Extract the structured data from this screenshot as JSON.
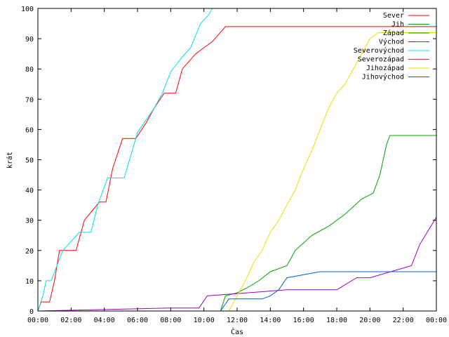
{
  "chart_data": {
    "type": "line",
    "xlabel": "Čas",
    "ylabel": "krát",
    "xlim": [
      0,
      24
    ],
    "ylim": [
      0,
      100
    ],
    "x_ticks": [
      {
        "value": 0,
        "label": "00:00"
      },
      {
        "value": 2,
        "label": "02:00"
      },
      {
        "value": 4,
        "label": "04:00"
      },
      {
        "value": 6,
        "label": "06:00"
      },
      {
        "value": 8,
        "label": "08:00"
      },
      {
        "value": 10,
        "label": "10:00"
      },
      {
        "value": 12,
        "label": "12:00"
      },
      {
        "value": 14,
        "label": "14:00"
      },
      {
        "value": 16,
        "label": "16:00"
      },
      {
        "value": 18,
        "label": "18:00"
      },
      {
        "value": 20,
        "label": "20:00"
      },
      {
        "value": 22,
        "label": "22:00"
      },
      {
        "value": 24,
        "label": "00:00"
      }
    ],
    "y_ticks": [
      0,
      10,
      20,
      30,
      40,
      50,
      60,
      70,
      80,
      90,
      100
    ],
    "grid": false,
    "legend_position": "top-right",
    "series": [
      {
        "name": "Sever",
        "color": "#ff0000",
        "x": [
          0.0,
          0.2,
          0.7,
          1.0,
          1.3,
          2.3,
          2.8,
          3.7,
          4.1,
          4.5,
          5.1,
          5.9,
          6.5,
          7.0,
          7.6,
          8.3,
          8.7,
          9.5,
          10.5,
          11.3,
          14.0,
          16.0,
          18.0,
          20.0,
          21.0,
          22.0,
          24.0
        ],
        "y": [
          0,
          3,
          3,
          10,
          20,
          20,
          30,
          36,
          36,
          47,
          57,
          57,
          62,
          67,
          72,
          72,
          80,
          85,
          89,
          94,
          94,
          94,
          94,
          94,
          94,
          94,
          94
        ]
      },
      {
        "name": "Jih",
        "color": "#00a000",
        "x": [
          0.0,
          11.0,
          11.3,
          12.0,
          12.7,
          13.3,
          14.0,
          15.0,
          15.5,
          16.5,
          17.5,
          18.5,
          19.5,
          20.2,
          20.6,
          21.0,
          21.2,
          22.0,
          24.0
        ],
        "y": [
          0,
          0,
          5,
          6,
          8,
          10,
          13,
          15,
          20,
          25,
          28,
          32,
          37,
          39,
          45,
          55,
          58,
          58,
          58
        ]
      },
      {
        "name": "Západ",
        "color": "#00a000",
        "x": [],
        "y": []
      },
      {
        "name": "Východ",
        "color": "#a000c0",
        "x": [
          0.0,
          7.9,
          9.7,
          10.2,
          15.0,
          18.0,
          19.2,
          20.0,
          22.5,
          23.0,
          24.0
        ],
        "y": [
          0,
          1,
          1,
          5,
          7,
          7,
          11,
          11,
          15,
          22,
          31
        ]
      },
      {
        "name": "Severovýchod",
        "color": "#00e0e0",
        "x": [
          0.0,
          0.3,
          0.5,
          0.8,
          1.5,
          2.5,
          3.2,
          3.6,
          4.2,
          5.2,
          6.0,
          7.0,
          7.5,
          8.0,
          8.7,
          9.2,
          9.8,
          10.3,
          10.5
        ],
        "y": [
          0,
          5,
          10,
          10,
          20,
          26,
          26,
          35,
          44,
          44,
          59,
          67,
          72,
          79,
          84,
          87,
          95,
          98,
          100
        ]
      },
      {
        "name": "Severozápad",
        "color": "#b04040",
        "x": [],
        "y": []
      },
      {
        "name": "Jihozápad",
        "color": "#e8e000",
        "x": [
          0.0,
          11.5,
          12.0,
          12.5,
          13.0,
          13.5,
          14.0,
          14.5,
          15.0,
          15.5,
          16.0,
          16.5,
          17.0,
          17.5,
          18.0,
          18.5,
          19.0,
          19.5,
          20.0,
          20.5,
          21.0,
          22.0,
          24.0
        ],
        "y": [
          0,
          0,
          5,
          10,
          16,
          20,
          26,
          30,
          35,
          40,
          47,
          53,
          60,
          67,
          72,
          75,
          80,
          85,
          90,
          92,
          92,
          92,
          92
        ]
      },
      {
        "name": "Jihovýchod",
        "color": "#0060e0",
        "x": [
          0.0,
          11.0,
          11.5,
          13.5,
          14.0,
          14.5,
          15.0,
          17.0,
          22.0,
          24.0
        ],
        "y": [
          0,
          0,
          4,
          4,
          5,
          7,
          11,
          13,
          13,
          13
        ]
      }
    ]
  }
}
